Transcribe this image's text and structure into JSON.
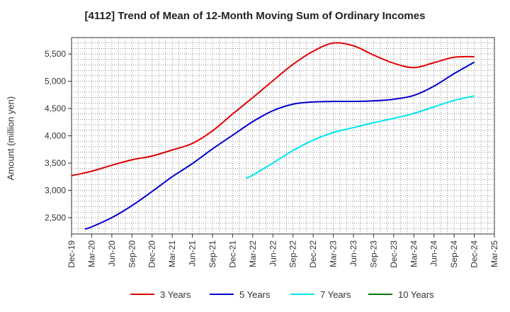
{
  "chart_data": {
    "type": "line",
    "title": "[4112]  Trend of Mean of 12-Month Moving Sum of Ordinary Incomes",
    "xlabel": "",
    "ylabel": "Amount (million yen)",
    "ylim": [
      2200,
      5800
    ],
    "yticks": [
      2500,
      3000,
      3500,
      4000,
      4500,
      5000,
      5500
    ],
    "ytick_labels": [
      "2,500",
      "3,000",
      "3,500",
      "4,000",
      "4,500",
      "5,000",
      "5,500"
    ],
    "xlim": [
      0,
      63
    ],
    "xticks": [
      0,
      3,
      6,
      9,
      12,
      15,
      18,
      21,
      24,
      27,
      30,
      33,
      36,
      39,
      42,
      45,
      48,
      51,
      54,
      57,
      60,
      63
    ],
    "xtick_labels": [
      "Dec-19",
      "Mar-20",
      "Jun-20",
      "Sep-20",
      "Dec-20",
      "Mar-21",
      "Jun-21",
      "Sep-21",
      "Dec-21",
      "Mar-22",
      "Jun-22",
      "Sep-22",
      "Dec-22",
      "Mar-23",
      "Jun-23",
      "Sep-23",
      "Dec-23",
      "Mar-24",
      "Jun-24",
      "Sep-24",
      "Dec-24",
      "Mar-25"
    ],
    "grid": true,
    "legend_position": "bottom",
    "series": [
      {
        "name": "3 Years",
        "color": "#e00000",
        "x": [
          0,
          3,
          6,
          9,
          12,
          15,
          18,
          21,
          24,
          27,
          30,
          33,
          36,
          39,
          42,
          45,
          48,
          51,
          54,
          57,
          60
        ],
        "values": [
          3270,
          3350,
          3460,
          3560,
          3630,
          3740,
          3860,
          4090,
          4400,
          4700,
          5010,
          5310,
          5550,
          5700,
          5650,
          5480,
          5330,
          5250,
          5340,
          5440,
          5450
        ]
      },
      {
        "name": "5 Years",
        "color": "#0000cc",
        "x": [
          2,
          3,
          6,
          9,
          12,
          15,
          18,
          21,
          24,
          27,
          30,
          33,
          36,
          39,
          42,
          45,
          48,
          51,
          54,
          57,
          60
        ],
        "values": [
          2290,
          2330,
          2500,
          2720,
          2980,
          3250,
          3490,
          3760,
          4010,
          4260,
          4460,
          4580,
          4620,
          4630,
          4630,
          4640,
          4670,
          4740,
          4910,
          5140,
          5350
        ]
      },
      {
        "name": "7 Years",
        "color": "#00e5ee",
        "x": [
          26,
          27,
          30,
          33,
          36,
          39,
          42,
          45,
          48,
          51,
          54,
          57,
          60
        ],
        "values": [
          3220,
          3280,
          3500,
          3730,
          3920,
          4060,
          4150,
          4240,
          4320,
          4410,
          4530,
          4650,
          4730
        ]
      },
      {
        "name": "10 Years",
        "color": "#007a00",
        "x": [],
        "values": []
      }
    ]
  }
}
